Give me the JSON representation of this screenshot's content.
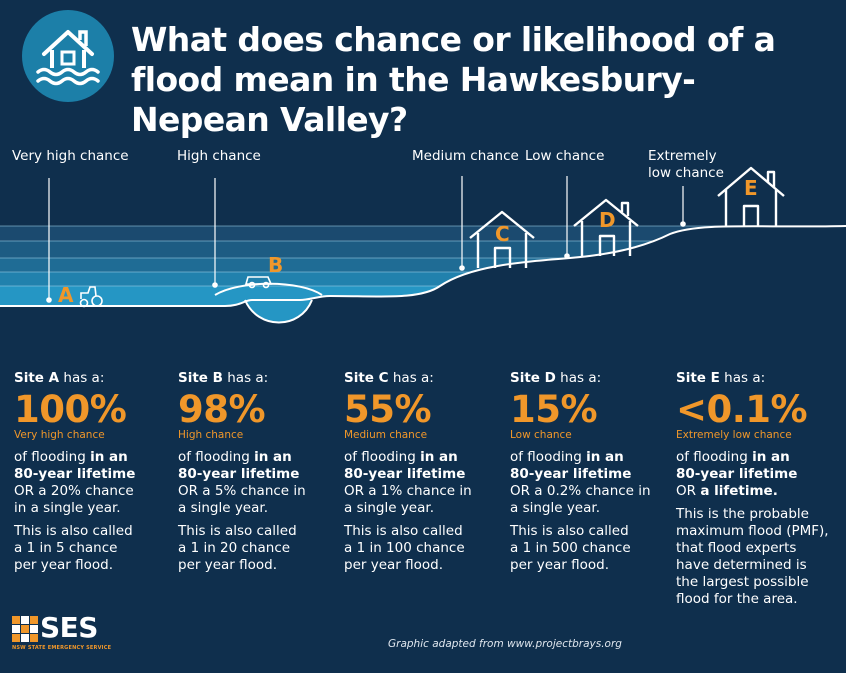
{
  "title": "What does chance or likelihood of a flood mean in the Hawkesbury-Nepean Valley?",
  "logo_icon": "flooded-house-icon",
  "site_labels": {
    "a": "Very high chance",
    "b": "High chance",
    "c": "Medium chance",
    "d": "Low chance",
    "e_line1": "Extremely",
    "e_line2": "low chance"
  },
  "markers": {
    "a": "A",
    "b": "B",
    "c": "C",
    "d": "D",
    "e": "E"
  },
  "sites": [
    {
      "site": "Site A",
      "has": " has a:",
      "pct": "100%",
      "cat": "Very high chance",
      "l1": "of flooding ",
      "l1b": "in an",
      "l2b": "80-year lifetime",
      "l3": "OR a 20% chance",
      "l4": "in a single year.",
      "also1": "This is also called",
      "also2": "a 1 in 5 chance",
      "also3": "per year flood."
    },
    {
      "site": "Site B",
      "has": " has a:",
      "pct": "98%",
      "cat": "High chance",
      "l1": "of flooding ",
      "l1b": "in an",
      "l2b": "80-year lifetime",
      "l3": "OR a 5% chance in",
      "l4": "a single year.",
      "also1": "This is also called",
      "also2": "a 1 in 20 chance",
      "also3": "per year flood."
    },
    {
      "site": "Site C",
      "has": " has a:",
      "pct": "55%",
      "cat": "Medium chance",
      "l1": "of flooding ",
      "l1b": "in an",
      "l2b": "80-year lifetime",
      "l3": "OR a 1% chance in",
      "l4": "a single year.",
      "also1": "This is also called",
      "also2": "a 1 in 100 chance",
      "also3": "per year flood."
    },
    {
      "site": "Site D",
      "has": " has a:",
      "pct": "15%",
      "cat": "Low chance",
      "l1": "of flooding ",
      "l1b": "in an",
      "l2b": "80-year lifetime",
      "l3": "OR a 0.2% chance in",
      "l4": "a single year.",
      "also1": "This is also called",
      "also2": "a 1 in 500 chance",
      "also3": "per year flood."
    },
    {
      "site": "Site E",
      "has": " has a:",
      "pct": "<0.1%",
      "cat": "Extremely low chance",
      "l1": "of flooding ",
      "l1b": "in an",
      "l2b": "80-year lifetime",
      "l3": "OR ",
      "l3b": "a lifetime.",
      "pmf1": "This is the probable",
      "pmf2": "maximum flood (PMF),",
      "pmf3": "that flood experts",
      "pmf4": "have determined is",
      "pmf5": "the largest possible",
      "pmf6": "flood for the area."
    }
  ],
  "footer": {
    "ses_logo": "SES",
    "ses_subtitle": "NSW STATE EMERGENCY SERVICE",
    "credit": "Graphic adapted from www.projectbrays.org"
  },
  "colors": {
    "background": "#0f2f4d",
    "accent": "#f0972a",
    "water": "#1c7fa8"
  }
}
